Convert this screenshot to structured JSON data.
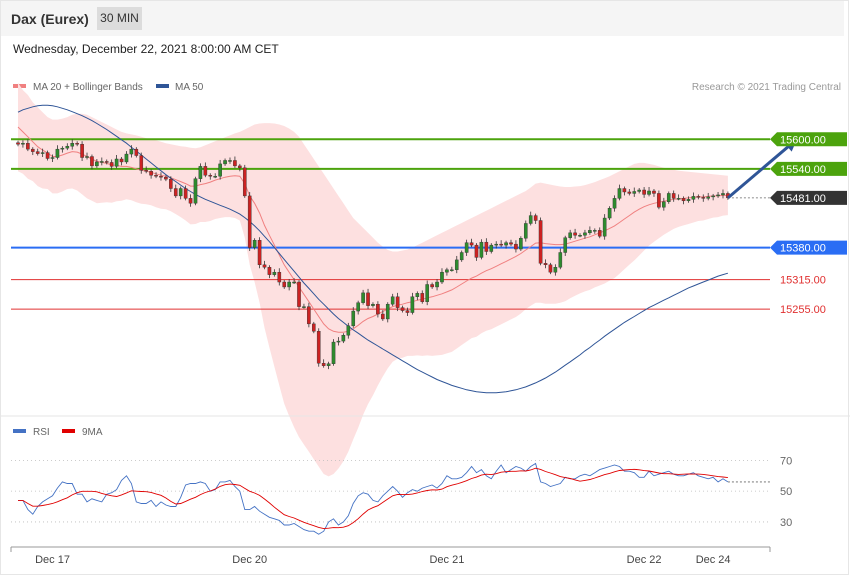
{
  "header": {
    "title": "Dax (Eurex)",
    "timeframe": "30 MIN"
  },
  "subheader": {
    "datetime": "Wednesday, December 22, 2021 8:00:00 AM CET"
  },
  "legend": {
    "items": [
      {
        "label": "MA 20 + Bollinger Bands",
        "color": "#f08080"
      },
      {
        "label": "MA 50",
        "color": "#2f5597"
      }
    ],
    "credit": "Research © 2021 Trading Central"
  },
  "chart_data": [
    {
      "type": "candlestick",
      "price_axis": {
        "min": 15050,
        "max": 15690
      },
      "levels": [
        {
          "value": 15600,
          "label": "15600.00",
          "kind": "resistance",
          "color": "#4ca30d"
        },
        {
          "value": 15540,
          "label": "15540.00",
          "kind": "resistance",
          "color": "#4ca30d"
        },
        {
          "value": 15481,
          "label": "15481.00",
          "kind": "last",
          "color": "#333333"
        },
        {
          "value": 15380,
          "label": "15380.00",
          "kind": "pivot",
          "color": "#2a6df4"
        },
        {
          "value": 15315,
          "label": "15315.00",
          "kind": "support",
          "color": "#e03030"
        },
        {
          "value": 15255,
          "label": "15255.00",
          "kind": "support",
          "color": "#e03030"
        }
      ],
      "x_labels": [
        "Dec 17",
        "Dec 20",
        "Dec 21",
        "Dec 22",
        "Dec 24"
      ],
      "x_label_index": [
        7,
        47,
        87,
        127,
        141
      ],
      "close": [
        15590,
        15592,
        15580,
        15575,
        15571,
        15573,
        15561,
        15563,
        15580,
        15582,
        15586,
        15592,
        15590,
        15563,
        15565,
        15546,
        15554,
        15555,
        15553,
        15545,
        15560,
        15554,
        15570,
        15580,
        15567,
        15537,
        15535,
        15527,
        15525,
        15523,
        15519,
        15500,
        15485,
        15500,
        15480,
        15470,
        15520,
        15545,
        15527,
        15525,
        15525,
        15550,
        15557,
        15557,
        15546,
        15542,
        15485,
        15380,
        15395,
        15345,
        15340,
        15325,
        15330,
        15310,
        15300,
        15310,
        15310,
        15260,
        15260,
        15225,
        15210,
        15145,
        15140,
        15144,
        15188,
        15190,
        15202,
        15221,
        15251,
        15268,
        15288,
        15262,
        15265,
        15245,
        15235,
        15265,
        15280,
        15258,
        15252,
        15248,
        15280,
        15287,
        15270,
        15305,
        15300,
        15310,
        15330,
        15335,
        15335,
        15355,
        15370,
        15390,
        15385,
        15360,
        15391,
        15372,
        15385,
        15387,
        15385,
        15390,
        15387,
        15377,
        15399,
        15429,
        15445,
        15435,
        15348,
        15345,
        15330,
        15340,
        15370,
        15400,
        15410,
        15405,
        15405,
        15410,
        15415,
        15415,
        15403,
        15440,
        15460,
        15480,
        15500,
        15493,
        15490,
        15494,
        15497,
        15488,
        15495,
        15490,
        15462,
        15473,
        15490,
        15480,
        15480,
        15475,
        15478,
        15484,
        15482,
        15480,
        15483,
        15485,
        15487,
        15490,
        15481
      ],
      "ma20": [
        15625,
        15615,
        15605,
        15595,
        15585,
        15578,
        15572,
        15565,
        15565,
        15568,
        15572,
        15575,
        15574,
        15570,
        15565,
        15560,
        15555,
        15553,
        15551,
        15548,
        15547,
        15545,
        15545,
        15543,
        15540,
        15537,
        15535,
        15533,
        15530,
        15527,
        15525,
        15522,
        15518,
        15514,
        15510,
        15505,
        15505,
        15508,
        15510,
        15513,
        15517,
        15520,
        15523,
        15525,
        15526,
        15525,
        15510,
        15485,
        15470,
        15450,
        15425,
        15405,
        15385,
        15365,
        15345,
        15330,
        15315,
        15300,
        15285,
        15270,
        15255,
        15240,
        15225,
        15215,
        15210,
        15208,
        15208,
        15210,
        15215,
        15222,
        15230,
        15236,
        15240,
        15245,
        15250,
        15255,
        15260,
        15263,
        15265,
        15268,
        15270,
        15273,
        15275,
        15278,
        15280,
        15283,
        15286,
        15290,
        15294,
        15300,
        15306,
        15312,
        15318,
        15322,
        15328,
        15333,
        15337,
        15342,
        15347,
        15352,
        15357,
        15362,
        15368,
        15375,
        15382,
        15389,
        15390,
        15388,
        15387,
        15386,
        15386,
        15387,
        15390,
        15393,
        15396,
        15399,
        15402,
        15406,
        15410,
        15414,
        15419,
        15424,
        15431,
        15438,
        15445,
        15452,
        15458,
        15463,
        15467,
        15470,
        15472,
        15474,
        15476,
        15478,
        15479,
        15480,
        15481,
        15482,
        15483,
        15483,
        15484,
        15485,
        15485,
        15486,
        15486
      ],
      "ma50": [
        15655,
        15660,
        15663,
        15666,
        15668,
        15669,
        15669,
        15668,
        15666,
        15663,
        15660,
        15656,
        15652,
        15648,
        15643,
        15638,
        15632,
        15626,
        15620,
        15613,
        15606,
        15599,
        15592,
        15584,
        15576,
        15568,
        15560,
        15552,
        15544,
        15536,
        15528,
        15521,
        15514,
        15507,
        15500,
        15494,
        15488,
        15483,
        15478,
        15474,
        15470,
        15466,
        15462,
        15458,
        15453,
        15448,
        15441,
        15433,
        15424,
        15414,
        15403,
        15392,
        15380,
        15368,
        15356,
        15344,
        15332,
        15320,
        15308,
        15297,
        15286,
        15275,
        15265,
        15255,
        15245,
        15236,
        15228,
        15220,
        15213,
        15206,
        15199,
        15192,
        15186,
        15180,
        15174,
        15168,
        15162,
        15156,
        15150,
        15144,
        15138,
        15132,
        15127,
        15122,
        15117,
        15112,
        15108,
        15104,
        15100,
        15097,
        15094,
        15091,
        15089,
        15087,
        15086,
        15085,
        15085,
        15085,
        15086,
        15087,
        15089,
        15091,
        15094,
        15097,
        15101,
        15105,
        15110,
        15115,
        15121,
        15127,
        15134,
        15141,
        15148,
        15155,
        15162,
        15170,
        15177,
        15185,
        15192,
        15200,
        15207,
        15214,
        15221,
        15228,
        15234,
        15240,
        15246,
        15252,
        15258,
        15263,
        15268,
        15273,
        15278,
        15283,
        15288,
        15293,
        15298,
        15302,
        15306,
        15310,
        15314,
        15318,
        15322,
        15325,
        15328
      ],
      "bb_upper": [
        15715,
        15700,
        15690,
        15675,
        15665,
        15655,
        15645,
        15640,
        15640,
        15642,
        15645,
        15650,
        15652,
        15652,
        15650,
        15645,
        15640,
        15635,
        15630,
        15625,
        15620,
        15615,
        15612,
        15610,
        15608,
        15605,
        15602,
        15600,
        15598,
        15595,
        15592,
        15590,
        15588,
        15586,
        15585,
        15583,
        15582,
        15584,
        15588,
        15592,
        15596,
        15600,
        15604,
        15608,
        15612,
        15615,
        15620,
        15625,
        15630,
        15632,
        15633,
        15633,
        15632,
        15630,
        15627,
        15622,
        15615,
        15605,
        15590,
        15575,
        15560,
        15545,
        15530,
        15515,
        15500,
        15485,
        15470,
        15455,
        15440,
        15430,
        15420,
        15410,
        15400,
        15390,
        15382,
        15375,
        15372,
        15372,
        15374,
        15376,
        15380,
        15385,
        15390,
        15395,
        15400,
        15405,
        15410,
        15415,
        15420,
        15425,
        15430,
        15435,
        15440,
        15445,
        15450,
        15455,
        15460,
        15465,
        15470,
        15475,
        15480,
        15485,
        15490,
        15495,
        15502,
        15510,
        15512,
        15510,
        15508,
        15506,
        15504,
        15503,
        15503,
        15504,
        15505,
        15507,
        15510,
        15513,
        15517,
        15521,
        15525,
        15530,
        15535,
        15540,
        15545,
        15550,
        15552,
        15552,
        15550,
        15548,
        15545,
        15542,
        15540,
        15538,
        15536,
        15535,
        15534,
        15533,
        15532,
        15531,
        15530,
        15529,
        15528,
        15527,
        15526
      ],
      "bb_lower": [
        15535,
        15530,
        15520,
        15515,
        15505,
        15500,
        15499,
        15490,
        15490,
        15494,
        15499,
        15500,
        15496,
        15488,
        15480,
        15475,
        15470,
        15471,
        15472,
        15471,
        15474,
        15475,
        15478,
        15476,
        15472,
        15469,
        15468,
        15466,
        15462,
        15459,
        15458,
        15454,
        15448,
        15442,
        15435,
        15427,
        15428,
        15432,
        15432,
        15434,
        15438,
        15440,
        15442,
        15442,
        15440,
        15435,
        15400,
        15345,
        15310,
        15268,
        15217,
        15177,
        15138,
        15100,
        15063,
        15038,
        15015,
        14995,
        14980,
        14965,
        14950,
        14935,
        14920,
        14915,
        14920,
        14931,
        14946,
        14965,
        14990,
        15014,
        15040,
        15062,
        15080,
        15100,
        15118,
        15135,
        15148,
        15154,
        15156,
        15160,
        15160,
        15161,
        15160,
        15161,
        15160,
        15161,
        15162,
        15165,
        15168,
        15175,
        15182,
        15189,
        15196,
        15199,
        15206,
        15211,
        15214,
        15219,
        15224,
        15229,
        15234,
        15239,
        15246,
        15255,
        15262,
        15268,
        15268,
        15266,
        15266,
        15266,
        15268,
        15271,
        15277,
        15282,
        15287,
        15291,
        15294,
        15299,
        15303,
        15307,
        15313,
        15318,
        15327,
        15336,
        15345,
        15354,
        15364,
        15374,
        15384,
        15392,
        15399,
        15406,
        15412,
        15418,
        15422,
        15425,
        15428,
        15431,
        15434,
        15435,
        15438,
        15441,
        15442,
        15445,
        15446
      ],
      "target_arrow": {
        "from": {
          "index": 144,
          "price": 15481
        },
        "to": {
          "index": 158,
          "price": 15600
        }
      }
    },
    {
      "type": "line",
      "title": "RSI",
      "legend": [
        "RSI",
        "9MA"
      ],
      "y_ticks": [
        70,
        50,
        30
      ],
      "ylim": [
        15,
        80
      ],
      "rsi": [
        44,
        44,
        38,
        35,
        40,
        43,
        45,
        47,
        52,
        56,
        55,
        55,
        48,
        48,
        43,
        45,
        44,
        43,
        48,
        49,
        51,
        57,
        60,
        55,
        43,
        42,
        42,
        44,
        40,
        43,
        41,
        40,
        40,
        46,
        54,
        55,
        55,
        56,
        55,
        50,
        51,
        56,
        56,
        57,
        53,
        50,
        38,
        38,
        40,
        37,
        35,
        33,
        32,
        31,
        28,
        28,
        29,
        27,
        25,
        24,
        24,
        22,
        24,
        30,
        32,
        28,
        30,
        34,
        42,
        47,
        49,
        48,
        44,
        43,
        47,
        50,
        53,
        50,
        46,
        49,
        51,
        50,
        52,
        53,
        54,
        52,
        55,
        60,
        58,
        58,
        59,
        62,
        66,
        62,
        64,
        60,
        58,
        63,
        67,
        62,
        64,
        66,
        65,
        63,
        66,
        68,
        56,
        55,
        53,
        54,
        55,
        59,
        58,
        58,
        60,
        61,
        60,
        62,
        64,
        65,
        66,
        67,
        66,
        63,
        63,
        62,
        59,
        59,
        63,
        60,
        61,
        62,
        63,
        61,
        60,
        60,
        61,
        62,
        60,
        59,
        58,
        59,
        56,
        58,
        56
      ]
    }
  ]
}
